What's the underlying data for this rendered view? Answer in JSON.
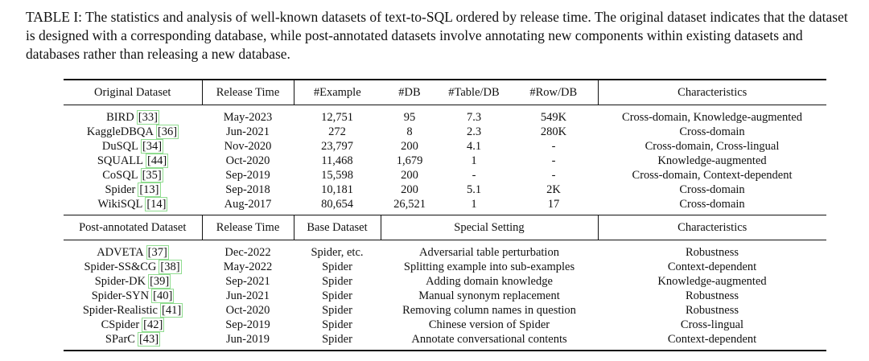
{
  "caption": "TABLE I: The statistics and analysis of well-known datasets of text-to-SQL ordered by release time. The original dataset indicates that the dataset is designed with a corresponding database, while post-annotated datasets involve annotating new components within existing datasets and databases rather than releasing a new database.",
  "original": {
    "headers": [
      "Original Dataset",
      "Release Time",
      "#Example",
      "#DB",
      "#Table/DB",
      "#Row/DB",
      "Characteristics"
    ],
    "rows": [
      {
        "name": "BIRD",
        "cite": "[33]",
        "time": "May-2023",
        "example": "12,751",
        "db": "95",
        "table": "7.3",
        "row": "549K",
        "char": "Cross-domain, Knowledge-augmented"
      },
      {
        "name": "KaggleDBQA",
        "cite": "[36]",
        "time": "Jun-2021",
        "example": "272",
        "db": "8",
        "table": "2.3",
        "row": "280K",
        "char": "Cross-domain"
      },
      {
        "name": "DuSQL",
        "cite": "[34]",
        "time": "Nov-2020",
        "example": "23,797",
        "db": "200",
        "table": "4.1",
        "row": "-",
        "char": "Cross-domain, Cross-lingual"
      },
      {
        "name": "SQUALL",
        "cite": "[44]",
        "time": "Oct-2020",
        "example": "11,468",
        "db": "1,679",
        "table": "1",
        "row": "-",
        "char": "Knowledge-augmented"
      },
      {
        "name": "CoSQL",
        "cite": "[35]",
        "time": "Sep-2019",
        "example": "15,598",
        "db": "200",
        "table": "-",
        "row": "-",
        "char": "Cross-domain, Context-dependent"
      },
      {
        "name": "Spider",
        "cite": "[13]",
        "time": "Sep-2018",
        "example": "10,181",
        "db": "200",
        "table": "5.1",
        "row": "2K",
        "char": "Cross-domain"
      },
      {
        "name": "WikiSQL",
        "cite": "[14]",
        "time": "Aug-2017",
        "example": "80,654",
        "db": "26,521",
        "table": "1",
        "row": "17",
        "char": "Cross-domain"
      }
    ]
  },
  "post": {
    "headers": [
      "Post-annotated Dataset",
      "Release Time",
      "Base Dataset",
      "Special Setting",
      "Characteristics"
    ],
    "rows": [
      {
        "name": "ADVETA",
        "cite": "[37]",
        "time": "Dec-2022",
        "base": "Spider, etc.",
        "setting": "Adversarial table perturbation",
        "char": "Robustness"
      },
      {
        "name": "Spider-SS&CG",
        "cite": "[38]",
        "time": "May-2022",
        "base": "Spider",
        "setting": "Splitting example into sub-examples",
        "char": "Context-dependent"
      },
      {
        "name": "Spider-DK",
        "cite": "[39]",
        "time": "Sep-2021",
        "base": "Spider",
        "setting": "Adding domain knowledge",
        "char": "Knowledge-augmented"
      },
      {
        "name": "Spider-SYN",
        "cite": "[40]",
        "time": "Jun-2021",
        "base": "Spider",
        "setting": "Manual synonym replacement",
        "char": "Robustness"
      },
      {
        "name": "Spider-Realistic",
        "cite": "[41]",
        "time": "Oct-2020",
        "base": "Spider",
        "setting": "Removing column names in question",
        "char": "Robustness"
      },
      {
        "name": "CSpider",
        "cite": "[42]",
        "time": "Sep-2019",
        "base": "Spider",
        "setting": "Chinese version of Spider",
        "char": "Cross-lingual"
      },
      {
        "name": "SParC",
        "cite": "[43]",
        "time": "Jun-2019",
        "base": "Spider",
        "setting": "Annotate conversational contents",
        "char": "Context-dependent"
      }
    ]
  }
}
